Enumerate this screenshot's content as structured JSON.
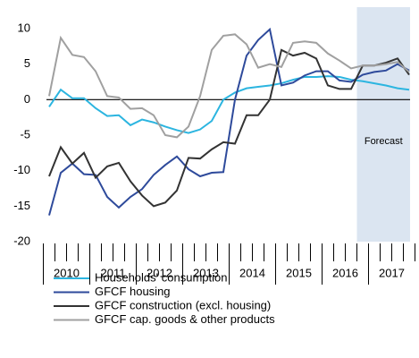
{
  "chart_data": {
    "type": "line",
    "categories": [
      null,
      null,
      null,
      null,
      null,
      null,
      null,
      null,
      null,
      null,
      null,
      null,
      null,
      null,
      null,
      null,
      null,
      null,
      null,
      null,
      null,
      null,
      null,
      null,
      null,
      null,
      null,
      null,
      null,
      null,
      null,
      null
    ],
    "year_labels": [
      "2010",
      "2011",
      "2012",
      "2013",
      "2014",
      "2015",
      "2016",
      "2017"
    ],
    "forecast": {
      "label": "Forecast",
      "from_index": 26.5
    },
    "ylim": [
      -20,
      10
    ],
    "yticks": [
      10,
      5,
      0,
      -5,
      -10,
      -15,
      -20
    ],
    "series": [
      {
        "name": "Households' consumption",
        "color": "#2cb5e0",
        "values": [
          -1,
          1.4,
          0.2,
          0.2,
          -1.2,
          -2.3,
          -2.2,
          -3.6,
          -2.8,
          -3.2,
          -3.8,
          -4.3,
          -4.7,
          -4.2,
          -3,
          0,
          1,
          1.6,
          1.8,
          2,
          2.3,
          2.8,
          3.2,
          3.2,
          3.3,
          3.2,
          2.8,
          2.6,
          2.3,
          2,
          1.6,
          1.4
        ]
      },
      {
        "name": "GFCF housing",
        "color": "#2e4a9b",
        "values": [
          -16.3,
          -10.3,
          -9,
          -10.5,
          -10.6,
          -13.7,
          -15.2,
          -13.7,
          -12.6,
          -10.6,
          -9.2,
          -8,
          -9.8,
          -10.8,
          -10.3,
          -10.2,
          0,
          6.2,
          8.4,
          9.9,
          2,
          2.4,
          3.4,
          4,
          4,
          2.7,
          2.5,
          3.5,
          3.9,
          4.1,
          5,
          4.1
        ]
      },
      {
        "name": "GFCF construction (excl. housing)",
        "color": "#333333",
        "values": [
          -10.8,
          -6.7,
          -9,
          -7.5,
          -11,
          -9.4,
          -8.9,
          -11.5,
          -13.5,
          -15,
          -14.5,
          -12.8,
          -8.2,
          -8.3,
          -7,
          -6,
          -6.2,
          -2.2,
          -2.2,
          0,
          7,
          6.2,
          6.6,
          5.8,
          2,
          1.5,
          1.5,
          4.8,
          4.8,
          5.2,
          5.8,
          3.5
        ]
      },
      {
        "name": "GFCF cap. goods & other products",
        "color": "#a0a0a0",
        "values": [
          0.5,
          8.7,
          6.3,
          6,
          4,
          0.5,
          0.3,
          -1.3,
          -1.2,
          -2.2,
          -5,
          -5.3,
          -3.8,
          0.5,
          7,
          9,
          9.2,
          7.8,
          4.5,
          5,
          4.6,
          8,
          8.2,
          8,
          6.5,
          5.5,
          4.4,
          4.8,
          4.8,
          5,
          5.3,
          3.9
        ]
      }
    ]
  }
}
